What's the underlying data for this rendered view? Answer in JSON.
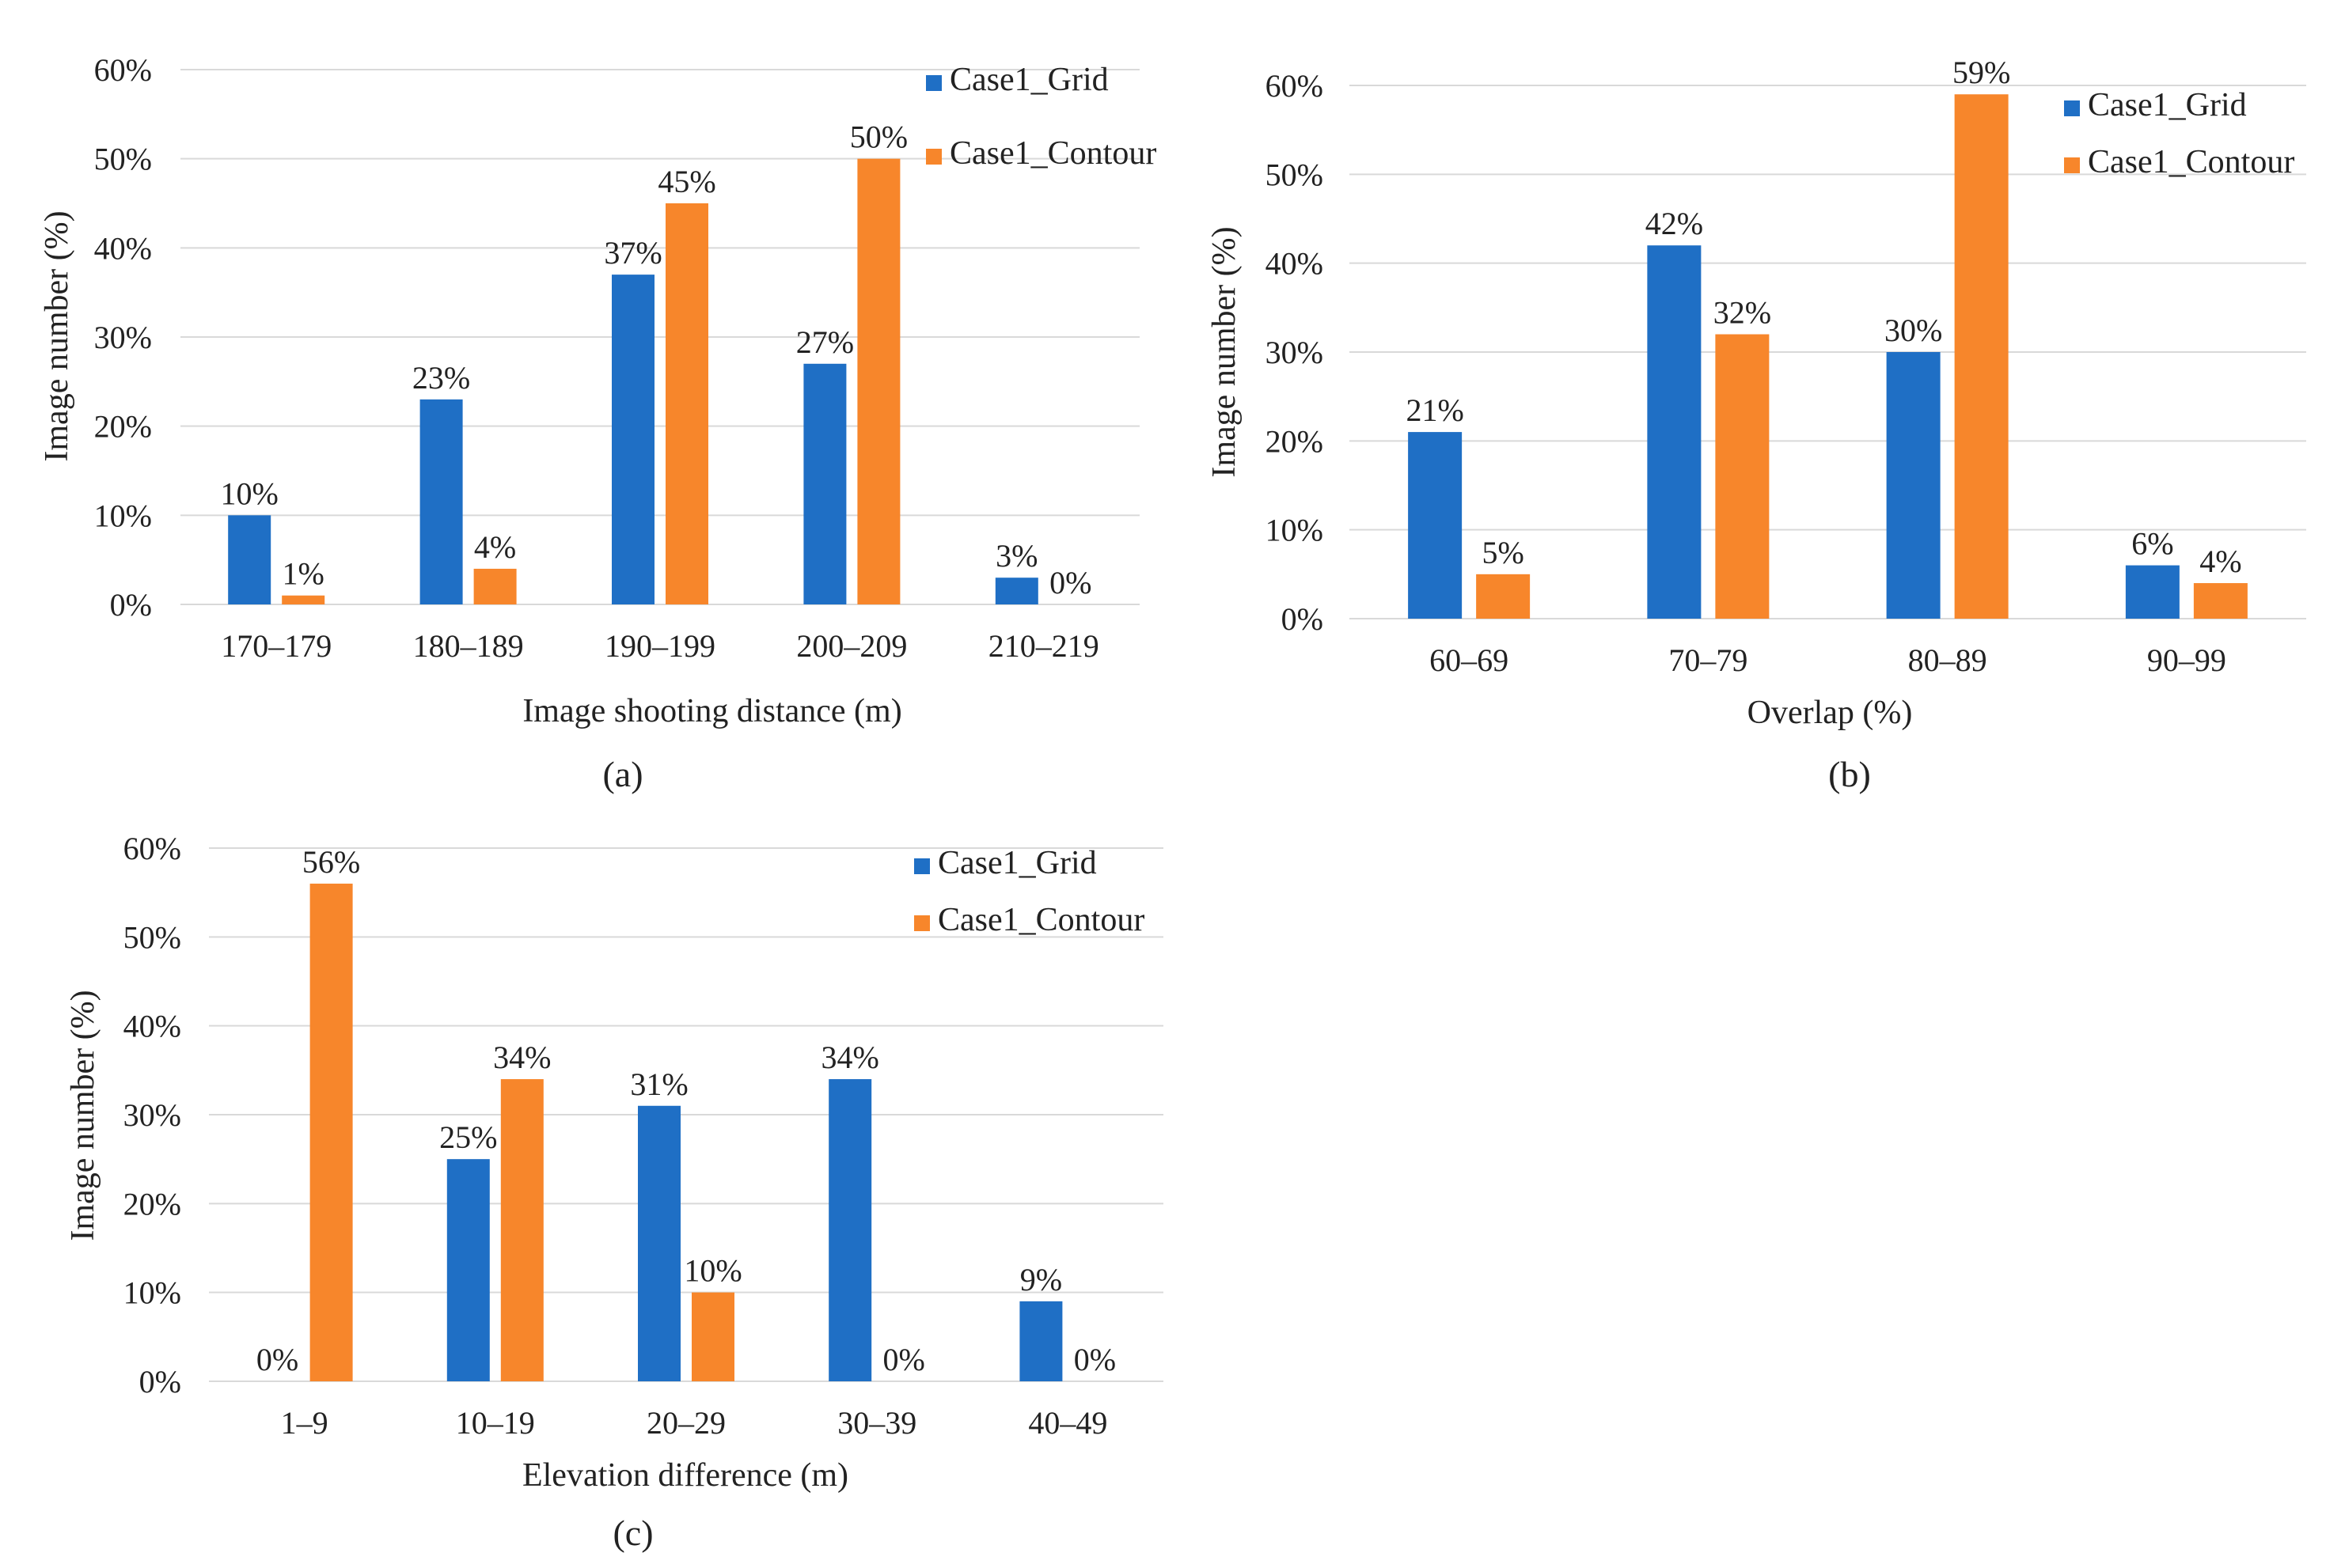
{
  "colors": {
    "grid_series": "#1f6fc5",
    "contour_series": "#f7862b",
    "gridline": "#d9d9d9",
    "text": "#222222"
  },
  "chart_data": [
    {
      "id": "a",
      "type": "bar",
      "panel_label": "(a)",
      "xlabel": "Image shooting distance (m)",
      "ylabel": "Image number (%)",
      "ylim": [
        0,
        60
      ],
      "yticks": [
        "0%",
        "10%",
        "20%",
        "30%",
        "40%",
        "50%",
        "60%"
      ],
      "categories": [
        "170–179",
        "180–189",
        "190–199",
        "200–209",
        "210–219"
      ],
      "legend_position": "top-right",
      "series": [
        {
          "name": "Case1_Grid",
          "values": [
            10,
            23,
            37,
            27,
            3
          ],
          "labels": [
            "10%",
            "23%",
            "37%",
            "27%",
            "3%"
          ]
        },
        {
          "name": "Case1_Contour",
          "values": [
            1,
            4,
            45,
            50,
            0
          ],
          "labels": [
            "1%",
            "4%",
            "45%",
            "50%",
            "0%"
          ]
        }
      ]
    },
    {
      "id": "b",
      "type": "bar",
      "panel_label": "(b)",
      "xlabel": "Overlap (%)",
      "ylabel": "Image number (%)",
      "ylim": [
        0,
        60
      ],
      "yticks": [
        "0%",
        "10%",
        "20%",
        "30%",
        "40%",
        "50%",
        "60%"
      ],
      "categories": [
        "60–69",
        "70–79",
        "80–89",
        "90–99"
      ],
      "legend_position": "top-right",
      "series": [
        {
          "name": "Case1_Grid",
          "values": [
            21,
            42,
            30,
            6
          ],
          "labels": [
            "21%",
            "42%",
            "30%",
            "6%"
          ]
        },
        {
          "name": "Case1_Contour",
          "values": [
            5,
            32,
            59,
            4
          ],
          "labels": [
            "5%",
            "32%",
            "59%",
            "4%"
          ]
        }
      ]
    },
    {
      "id": "c",
      "type": "bar",
      "panel_label": "(c)",
      "xlabel": "Elevation difference (m)",
      "ylabel": "Image number (%)",
      "ylim": [
        0,
        60
      ],
      "yticks": [
        "0%",
        "10%",
        "20%",
        "30%",
        "40%",
        "50%",
        "60%"
      ],
      "categories": [
        "1–9",
        "10–19",
        "20–29",
        "30–39",
        "40–49"
      ],
      "legend_position": "top-right",
      "series": [
        {
          "name": "Case1_Grid",
          "values": [
            0,
            25,
            31,
            34,
            9
          ],
          "labels": [
            "0%",
            "25%",
            "31%",
            "34%",
            "9%"
          ]
        },
        {
          "name": "Case1_Contour",
          "values": [
            56,
            34,
            10,
            0,
            0
          ],
          "labels": [
            "56%",
            "34%",
            "10%",
            "0%",
            "0%"
          ]
        }
      ]
    }
  ]
}
